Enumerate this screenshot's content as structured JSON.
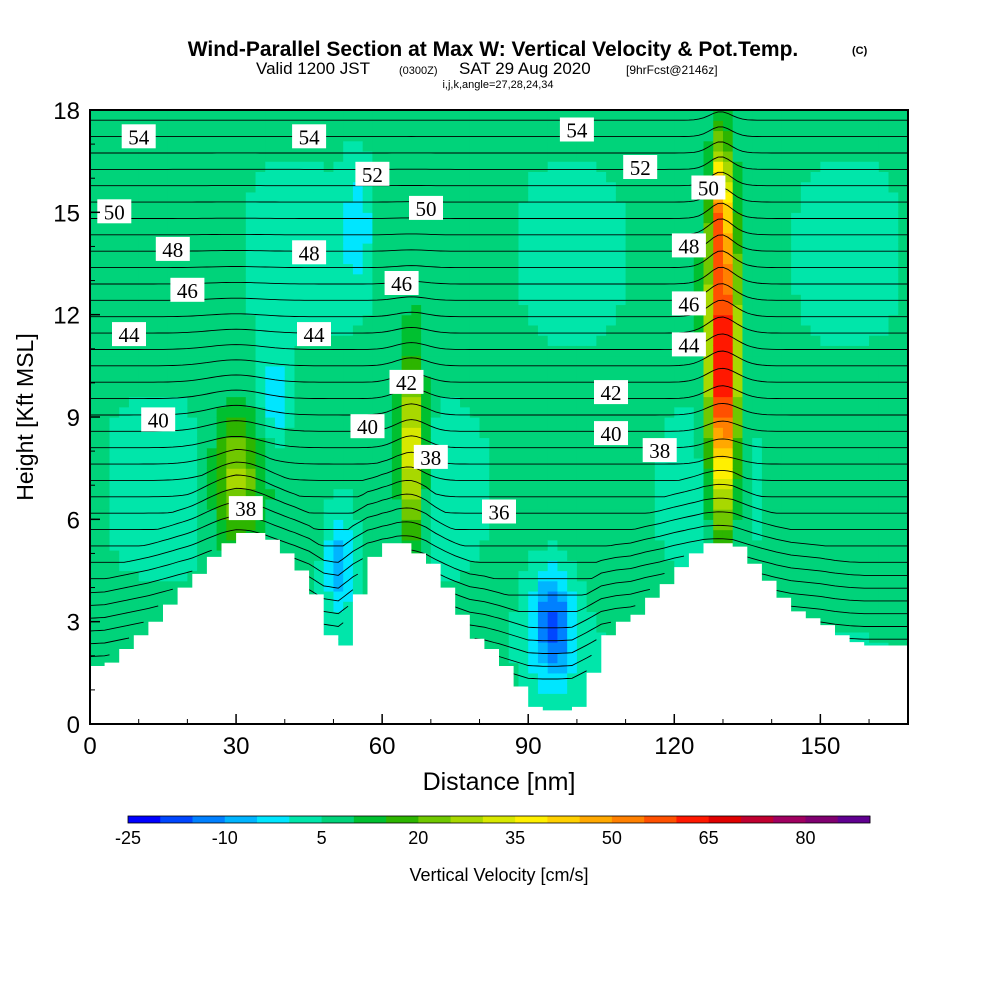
{
  "chart_data": {
    "type": "heatmap",
    "title": "Wind-Parallel Section at Max W: Vertical Velocity & Pot.Temp.",
    "title_mark": "(C)",
    "subtitle_main": "Valid 1200 JST",
    "subtitle_utc": "(0300Z)",
    "subtitle_date": "SAT 29 Aug 2020",
    "subtitle_fcst": "[9hrFcst@2146z]",
    "subtitle_indices": "i,j,k,angle=27,28,24,34",
    "xlabel": "Distance [nm]",
    "ylabel": "Height [Kft MSL]",
    "xlim": [
      0,
      168
    ],
    "ylim": [
      0,
      18
    ],
    "xticks": [
      0,
      30,
      60,
      90,
      120,
      150
    ],
    "yticks": [
      0,
      3,
      6,
      9,
      12,
      15,
      18
    ],
    "colorbar": {
      "label": "Vertical Velocity [cm/s]",
      "ticks": [
        -25,
        -10,
        5,
        20,
        35,
        50,
        65,
        80
      ],
      "levels_min": -25,
      "levels_step": 5,
      "colors": [
        "#0000ff",
        "#0046ff",
        "#0080ff",
        "#00b4ff",
        "#00e6ff",
        "#00e6aa",
        "#00d37a",
        "#00c030",
        "#2db500",
        "#70c800",
        "#a8d800",
        "#d8e800",
        "#fff000",
        "#ffd000",
        "#ffa800",
        "#ff8000",
        "#ff5000",
        "#ff1800",
        "#e00000",
        "#c00030",
        "#a00060",
        "#800070",
        "#600090"
      ]
    },
    "terrain_profile": {
      "x": [
        0,
        3,
        6,
        9,
        12,
        15,
        18,
        21,
        24,
        27,
        30,
        33,
        36,
        39,
        42,
        45,
        48,
        51,
        54,
        57,
        60,
        63,
        66,
        69,
        72,
        75,
        78,
        81,
        84,
        87,
        90,
        93,
        96,
        99,
        102,
        105,
        108,
        111,
        114,
        117,
        120,
        123,
        126,
        129,
        132,
        135,
        138,
        141,
        144,
        147,
        150,
        153,
        156,
        159,
        162,
        165,
        168
      ],
      "height_kft": [
        1.7,
        1.8,
        2.2,
        2.6,
        3.0,
        3.5,
        4.0,
        4.4,
        4.9,
        5.3,
        5.6,
        5.6,
        5.4,
        5.0,
        4.5,
        3.8,
        2.6,
        2.3,
        3.8,
        4.9,
        5.3,
        5.3,
        5.0,
        4.7,
        4.0,
        3.2,
        2.5,
        2.2,
        1.7,
        1.1,
        0.5,
        0.4,
        0.4,
        0.5,
        1.5,
        2.6,
        3.0,
        3.2,
        3.7,
        4.1,
        4.6,
        5.0,
        5.3,
        5.3,
        5.2,
        4.7,
        4.2,
        3.7,
        3.3,
        3.1,
        2.9,
        2.6,
        2.4,
        2.3,
        2.3,
        2.3,
        2.3
      ]
    },
    "updrafts": [
      {
        "x": 130,
        "z": 10.5,
        "sx": 2.8,
        "sz": 4.2,
        "w": 65
      },
      {
        "x": 129.5,
        "z": 15.2,
        "sx": 1.8,
        "sz": 2.0,
        "w": 30
      },
      {
        "x": 66,
        "z": 8.0,
        "sx": 2.6,
        "sz": 2.6,
        "w": 32
      },
      {
        "x": 30,
        "z": 7.2,
        "sx": 4.5,
        "sz": 2.0,
        "w": 20
      },
      {
        "x": 95,
        "z": 3.0,
        "sx": 4.5,
        "sz": 1.6,
        "w": -22
      },
      {
        "x": 51,
        "z": 4.8,
        "sx": 3.0,
        "sz": 1.6,
        "w": -15
      },
      {
        "x": 38,
        "z": 9.5,
        "sx": 3.0,
        "sz": 1.3,
        "w": -12
      },
      {
        "x": 55,
        "z": 14.5,
        "sx": 3.0,
        "sz": 1.8,
        "w": -10
      }
    ],
    "theta_contours": [
      {
        "label": "36",
        "x": 84,
        "y": 6.2
      },
      {
        "label": "38",
        "x": 117,
        "y": 8.0,
        "x2": 70,
        "y2": 7.8,
        "x3": 32,
        "y3": 6.3
      },
      {
        "label": "40",
        "x": 14,
        "y": 8.9,
        "x2": 57,
        "y2": 8.7,
        "x3": 107,
        "y3": 8.5
      },
      {
        "label": "42",
        "x": 65,
        "y": 10.0,
        "x2": 107,
        "y2": 9.7
      },
      {
        "label": "44",
        "x": 8,
        "y": 11.4,
        "x2": 46,
        "y2": 11.4,
        "x3": 123,
        "y3": 11.1
      },
      {
        "label": "46",
        "x": 20,
        "y": 12.7,
        "x2": 64,
        "y2": 12.9,
        "x3": 123,
        "y3": 12.3
      },
      {
        "label": "48",
        "x": 17,
        "y": 13.9,
        "x2": 45,
        "y2": 13.8,
        "x3": 123,
        "y3": 14.0
      },
      {
        "label": "50",
        "x": 5,
        "y": 15.0,
        "x2": 69,
        "y2": 15.1,
        "x3": 127,
        "y3": 15.7
      },
      {
        "label": "52",
        "x": 58,
        "y": 16.1,
        "x2": 113,
        "y2": 16.3
      },
      {
        "label": "54",
        "x": 10,
        "y": 17.2,
        "x2": 45,
        "y2": 17.2,
        "x3": 100,
        "y3": 17.4
      }
    ]
  }
}
